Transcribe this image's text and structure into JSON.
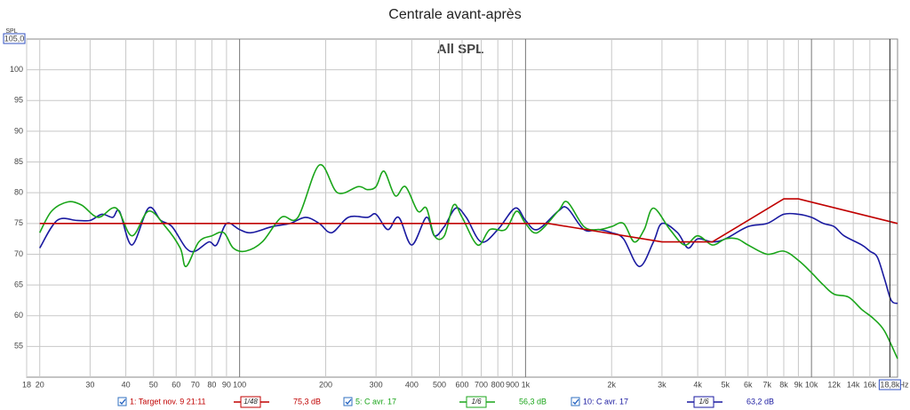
{
  "chart_data": {
    "type": "line",
    "title": "Centrale avant-après",
    "subtitle": "All SPL",
    "ylabel": "SPL",
    "xlabel": "Hz",
    "log_x": true,
    "grid": true,
    "xlim": [
      18,
      20000
    ],
    "ylim": [
      50,
      105
    ],
    "yticks": [
      55,
      60,
      65,
      70,
      75,
      80,
      85,
      90,
      95,
      100,
      {
        "value": 105,
        "label": "105,0"
      }
    ],
    "xticks": [
      18,
      20,
      30,
      40,
      50,
      60,
      70,
      80,
      90,
      100,
      200,
      300,
      400,
      500,
      600,
      700,
      800,
      900,
      {
        "value": 1000,
        "label": "1k"
      },
      {
        "value": 2000,
        "label": "2k"
      },
      {
        "value": 3000,
        "label": "3k"
      },
      {
        "value": 4000,
        "label": "4k"
      },
      {
        "value": 5000,
        "label": "5k"
      },
      {
        "value": 6000,
        "label": "6k"
      },
      {
        "value": 7000,
        "label": "7k"
      },
      {
        "value": 8000,
        "label": "8k"
      },
      {
        "value": 9000,
        "label": "9k"
      },
      {
        "value": 10000,
        "label": "10k"
      },
      {
        "value": 12000,
        "label": "12k"
      },
      {
        "value": 14000,
        "label": "14k"
      },
      {
        "value": 16000,
        "label": "16k"
      }
    ],
    "cursor": {
      "value": 18800,
      "label": "18,8k"
    },
    "series": [
      {
        "name": "1: Target nov. 9 21:11",
        "color": "#c00000",
        "smoothing": "1/48",
        "cursor_value": 75.3,
        "cursor_label": "75,3 dB",
        "x": [
          20,
          1200,
          3000,
          4500,
          8000,
          9000,
          20000
        ],
        "values": [
          75,
          75,
          72,
          72,
          79,
          79,
          75
        ]
      },
      {
        "name": "5: C avr. 17",
        "color": "#1aa51a",
        "smoothing": "1/6",
        "cursor_value": 56.3,
        "cursor_label": "56,3 dB",
        "x": [
          20,
          22,
          25,
          28,
          32,
          37,
          42,
          48,
          55,
          62,
          65,
          72,
          80,
          88,
          95,
          105,
          120,
          140,
          160,
          190,
          220,
          260,
          280,
          300,
          320,
          350,
          380,
          420,
          450,
          480,
          520,
          560,
          600,
          680,
          750,
          850,
          930,
          1000,
          1100,
          1300,
          1400,
          1600,
          1800,
          2000,
          2200,
          2400,
          2600,
          2800,
          3200,
          3600,
          4000,
          4500,
          5000,
          5500,
          6000,
          7000,
          8000,
          9000,
          10000,
          11000,
          12000,
          13500,
          15000,
          16500,
          18000,
          20000
        ],
        "values": [
          73.5,
          77,
          78.5,
          78,
          76,
          77.5,
          73,
          77,
          74.5,
          71,
          68,
          72,
          73,
          73.5,
          71,
          70.5,
          72,
          76,
          76,
          84.5,
          80,
          81,
          80.5,
          81,
          83.5,
          79.5,
          81,
          77,
          77.5,
          73,
          73,
          78,
          76,
          71.5,
          74,
          74,
          77,
          75,
          73.5,
          77,
          78.5,
          74.5,
          74,
          74.5,
          75,
          72,
          74,
          77.5,
          74,
          71.5,
          73,
          71.5,
          72.5,
          72.5,
          71.5,
          70,
          70.5,
          69,
          67,
          65,
          63.5,
          63,
          61,
          59.5,
          57.5,
          53
        ]
      },
      {
        "name": "10: C avr. 17",
        "color": "#1a1aa0",
        "smoothing": "1/6",
        "cursor_value": 63.2,
        "cursor_label": "63,2 dB",
        "x": [
          20,
          23,
          27,
          30,
          33,
          36,
          38,
          42,
          48,
          53,
          58,
          65,
          70,
          78,
          83,
          90,
          100,
          110,
          130,
          150,
          170,
          190,
          210,
          240,
          280,
          300,
          330,
          360,
          400,
          450,
          480,
          520,
          570,
          620,
          700,
          800,
          920,
          1000,
          1100,
          1300,
          1400,
          1600,
          1800,
          2000,
          2200,
          2500,
          2800,
          3000,
          3400,
          3700,
          4000,
          4500,
          5000,
          6000,
          7000,
          8000,
          9000,
          10000,
          11000,
          12000,
          13000,
          15000,
          16000,
          17000,
          18000,
          19000,
          20000
        ],
        "values": [
          71,
          75.5,
          75.5,
          75.5,
          76.5,
          76,
          77,
          71.5,
          77.5,
          75.5,
          74.5,
          71,
          70.5,
          72,
          71.5,
          75,
          74,
          73.5,
          74.5,
          75,
          76,
          75,
          73.5,
          76,
          76,
          76.5,
          74,
          76,
          71.5,
          76,
          73,
          74.5,
          77.5,
          76,
          72,
          74,
          77.5,
          75.5,
          74,
          77,
          77.5,
          74,
          74,
          73.5,
          72.5,
          68,
          72,
          75,
          73.5,
          71,
          72.5,
          72,
          72.5,
          74.5,
          75,
          76.5,
          76.5,
          76,
          75,
          74.5,
          73,
          71.5,
          70.5,
          69.5,
          66,
          62.5,
          62
        ]
      }
    ]
  }
}
